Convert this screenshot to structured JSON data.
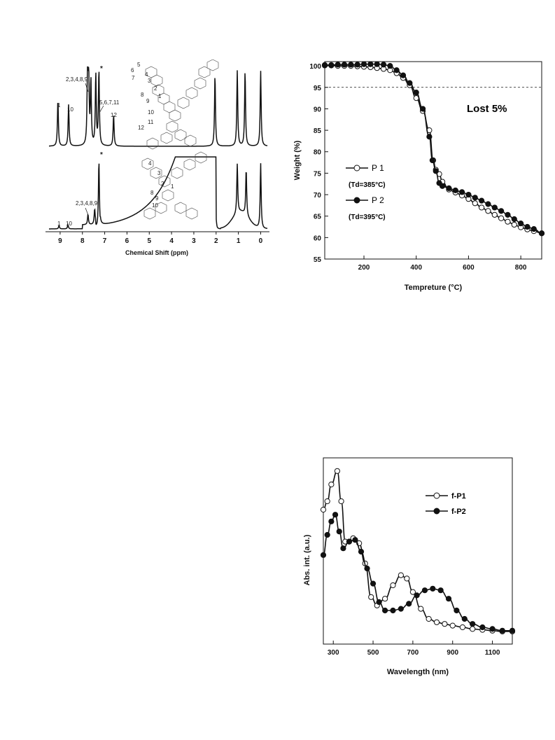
{
  "nmr": {
    "chart_data": {
      "type": "line",
      "xlabel": "Chemical Shift (ppm)",
      "xlim": [
        9.5,
        -0.3
      ],
      "x_ticks": [
        "9",
        "8",
        "7",
        "6",
        "5",
        "4",
        "3",
        "2",
        "1",
        "0"
      ],
      "solvent_marker": "*",
      "series": [
        {
          "labels": [
            "1",
            "10",
            "2,3,4,8,9",
            "5,6,7,11",
            "12"
          ],
          "peaks": [
            {
              "ppm": 9.1,
              "h": 0.62
            },
            {
              "ppm": 8.62,
              "h": 0.55
            },
            {
              "ppm": 7.77,
              "h": 1.0
            },
            {
              "ppm": 7.72,
              "h": 0.9
            },
            {
              "ppm": 7.62,
              "h": 0.85
            },
            {
              "ppm": 7.4,
              "h": 0.95
            },
            {
              "ppm": 7.26,
              "h": 1.0
            },
            {
              "ppm": 6.6,
              "h": 0.42
            },
            {
              "ppm": 2.05,
              "h": 0.95
            },
            {
              "ppm": 1.05,
              "h": 1.0
            },
            {
              "ppm": 0.7,
              "h": 1.0
            },
            {
              "ppm": 0.0,
              "h": 1.0
            }
          ]
        },
        {
          "labels": [
            "1",
            "10",
            "2,3,4,8,9"
          ],
          "peaks": [
            {
              "ppm": 9.05,
              "h": 0.05
            },
            {
              "ppm": 8.65,
              "h": 0.06
            },
            {
              "ppm": 7.75,
              "h": 0.15
            },
            {
              "ppm": 7.45,
              "h": 0.22
            },
            {
              "ppm": 7.26,
              "h": 1.0
            },
            {
              "ppm": 2.0,
              "h": 0.15
            },
            {
              "ppm": 1.05,
              "h": 0.72
            },
            {
              "ppm": 0.65,
              "h": 0.68
            },
            {
              "ppm": 0.0,
              "h": 0.95
            }
          ]
        }
      ]
    },
    "structure_numbers_top": [
      "5",
      "6",
      "7",
      "4",
      "3",
      "2",
      "1",
      "8",
      "9",
      "10",
      "11",
      "12"
    ],
    "structure_numbers_bottom": [
      "4",
      "3",
      "2",
      "1",
      "8",
      "9",
      "10"
    ]
  },
  "tga": {
    "chart_data": {
      "type": "line",
      "xlabel": "Tempreture (°C)",
      "ylabel": "Weight (%)",
      "xlim": [
        50,
        880
      ],
      "ylim": [
        55,
        101
      ],
      "x_ticks": [
        200,
        400,
        600,
        800
      ],
      "y_ticks": [
        55,
        60,
        65,
        70,
        75,
        80,
        85,
        90,
        95,
        100
      ],
      "reference_line_y": 95,
      "annotation": "Lost 5%",
      "series": [
        {
          "name": "P 1",
          "sub": "(Td=385°C)",
          "marker": "open-circle",
          "x": [
            50,
            75,
            100,
            125,
            150,
            175,
            200,
            225,
            250,
            275,
            300,
            325,
            350,
            375,
            400,
            425,
            450,
            465,
            475,
            488,
            500,
            525,
            550,
            575,
            600,
            625,
            650,
            675,
            700,
            725,
            750,
            775,
            800,
            825,
            850,
            880
          ],
          "y": [
            100.1,
            100.1,
            100.0,
            100.0,
            100.0,
            99.9,
            99.8,
            99.7,
            99.5,
            99.3,
            99.0,
            98.3,
            97.2,
            95.5,
            92.5,
            89.5,
            85.0,
            78.0,
            75.8,
            74.8,
            73.0,
            71.2,
            70.5,
            69.8,
            69.0,
            68.0,
            67.0,
            66.2,
            65.3,
            64.5,
            63.7,
            63.0,
            62.4,
            61.9,
            61.5,
            61.0
          ]
        },
        {
          "name": "P 2",
          "sub": "(Td=395°C)",
          "marker": "filled-circle",
          "x": [
            50,
            75,
            100,
            125,
            150,
            175,
            200,
            225,
            250,
            275,
            300,
            325,
            350,
            375,
            400,
            425,
            450,
            462,
            475,
            488,
            500,
            525,
            550,
            575,
            600,
            625,
            650,
            675,
            700,
            725,
            750,
            775,
            800,
            825,
            850,
            880
          ],
          "y": [
            100.2,
            100.2,
            100.3,
            100.3,
            100.3,
            100.3,
            100.4,
            100.4,
            100.4,
            100.3,
            100.0,
            99.0,
            97.8,
            96.0,
            93.8,
            90.0,
            83.5,
            78.0,
            75.5,
            72.7,
            72.0,
            71.5,
            71.0,
            70.6,
            70.0,
            69.3,
            68.6,
            67.8,
            67.0,
            66.2,
            65.3,
            64.3,
            63.3,
            62.5,
            62.0,
            61.0
          ]
        }
      ]
    }
  },
  "abs": {
    "chart_data": {
      "type": "line",
      "xlabel": "Wavelength (nm)",
      "ylabel": "Abs. int. (a.u.)",
      "xlim": [
        250,
        1200
      ],
      "ylim": [
        0,
        1.0
      ],
      "x_ticks": [
        300,
        500,
        700,
        900,
        1100
      ],
      "series": [
        {
          "name": "f-P1",
          "marker": "open-circle",
          "x": [
            250,
            270,
            290,
            320,
            340,
            360,
            380,
            400,
            430,
            460,
            490,
            520,
            560,
            600,
            640,
            670,
            700,
            740,
            780,
            820,
            860,
            900,
            950,
            1000,
            1050,
            1100,
            1150,
            1200
          ],
          "y": [
            0.75,
            0.8,
            0.9,
            0.98,
            0.8,
            0.56,
            0.56,
            0.58,
            0.55,
            0.43,
            0.23,
            0.18,
            0.22,
            0.3,
            0.36,
            0.34,
            0.26,
            0.16,
            0.1,
            0.08,
            0.07,
            0.06,
            0.05,
            0.04,
            0.035,
            0.03,
            0.025,
            0.025
          ]
        },
        {
          "name": "f-P2",
          "marker": "filled-circle",
          "x": [
            250,
            270,
            290,
            310,
            330,
            350,
            380,
            410,
            440,
            470,
            500,
            530,
            560,
            600,
            640,
            680,
            720,
            760,
            800,
            840,
            880,
            920,
            960,
            1000,
            1050,
            1100,
            1150,
            1200
          ],
          "y": [
            0.48,
            0.6,
            0.68,
            0.72,
            0.62,
            0.52,
            0.56,
            0.57,
            0.5,
            0.4,
            0.31,
            0.2,
            0.15,
            0.15,
            0.16,
            0.19,
            0.24,
            0.27,
            0.28,
            0.27,
            0.22,
            0.15,
            0.1,
            0.07,
            0.05,
            0.04,
            0.03,
            0.03
          ]
        }
      ]
    }
  }
}
